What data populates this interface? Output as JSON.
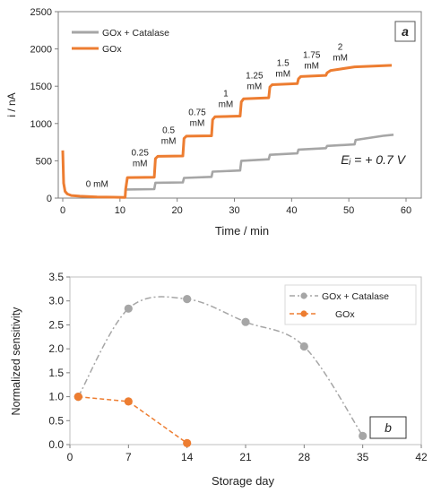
{
  "colors": {
    "gray": "#a6a6a6",
    "orange": "#ed7d31",
    "axis": "#7f7f7f",
    "text": "#222222"
  },
  "chart_data": [
    {
      "type": "line",
      "panel_label": "a",
      "xlabel": "Time / min",
      "ylabel": "i / nA",
      "xlim": [
        0,
        60
      ],
      "ylim": [
        0,
        2500
      ],
      "xticks": [
        0,
        10,
        20,
        30,
        40,
        50,
        60
      ],
      "yticks": [
        0,
        500,
        1000,
        1500,
        2000,
        2500
      ],
      "grid": false,
      "legend_position": "top-left",
      "annotation_potential": "Eᵢ = + 0.7 V",
      "series": [
        {
          "name": "GOx + Catalase",
          "color": "#a6a6a6",
          "x": [
            11,
            16.0,
            16.2,
            21.0,
            21.2,
            26.0,
            26.2,
            31.0,
            31.2,
            36.0,
            36.2,
            41.0,
            41.2,
            46.0,
            46.2,
            51.0,
            51.2,
            56.0,
            57.8
          ],
          "y": [
            115,
            120,
            205,
            210,
            270,
            285,
            355,
            370,
            500,
            520,
            580,
            600,
            650,
            670,
            700,
            720,
            780,
            835,
            850
          ]
        },
        {
          "name": "GOx",
          "color": "#ed7d31",
          "x": [
            0,
            0.15,
            0.4,
            0.8,
            1.5,
            3,
            6,
            10.9,
            11.0,
            11.3,
            16.0,
            16.2,
            16.6,
            21.0,
            21.2,
            21.6,
            26.0,
            26.2,
            26.6,
            31.0,
            31.2,
            31.6,
            36.0,
            36.2,
            36.6,
            41.0,
            41.2,
            41.6,
            46.0,
            46.2,
            46.8,
            51.0,
            57.5
          ],
          "y": [
            640,
            200,
            90,
            55,
            35,
            25,
            15,
            10,
            120,
            275,
            280,
            530,
            560,
            565,
            800,
            830,
            835,
            1050,
            1090,
            1100,
            1290,
            1330,
            1345,
            1490,
            1520,
            1535,
            1600,
            1630,
            1645,
            1680,
            1710,
            1760,
            1780
          ]
        }
      ],
      "step_labels": [
        {
          "text": "0 mM",
          "x": 6,
          "y": 150
        },
        {
          "text": "0.25 mM",
          "x": 13.5,
          "y": 500
        },
        {
          "text": "0.5 mM",
          "x": 18.5,
          "y": 800
        },
        {
          "text": "0.75 mM",
          "x": 23.5,
          "y": 1040
        },
        {
          "text": "1 mM",
          "x": 28.5,
          "y": 1290
        },
        {
          "text": "1.25 mM",
          "x": 33.5,
          "y": 1530
        },
        {
          "text": "1.5 mM",
          "x": 38.5,
          "y": 1700
        },
        {
          "text": "1.75 mM",
          "x": 43.5,
          "y": 1810
        },
        {
          "text": "2 mM",
          "x": 48.5,
          "y": 1920
        }
      ]
    },
    {
      "type": "line",
      "panel_label": "b",
      "xlabel": "Storage day",
      "ylabel": "Normalized sensitivity",
      "xlim": [
        0,
        42
      ],
      "ylim": [
        0,
        3.5
      ],
      "xticks": [
        0,
        7,
        14,
        21,
        28,
        35,
        42
      ],
      "yticks": [
        "0.0",
        "0.5",
        "1.0",
        "1.5",
        "2.0",
        "2.5",
        "3.0",
        "3.5"
      ],
      "grid": false,
      "legend_position": "top-right",
      "series": [
        {
          "name": "GOx + Catalase",
          "color": "#a6a6a6",
          "x": [
            1,
            7,
            14,
            21,
            28,
            35
          ],
          "y": [
            1.0,
            2.84,
            3.04,
            2.56,
            2.05,
            0.18
          ]
        },
        {
          "name": "GOx",
          "color": "#ed7d31",
          "x": [
            1,
            7,
            14
          ],
          "y": [
            1.0,
            0.9,
            0.03
          ]
        }
      ]
    }
  ]
}
